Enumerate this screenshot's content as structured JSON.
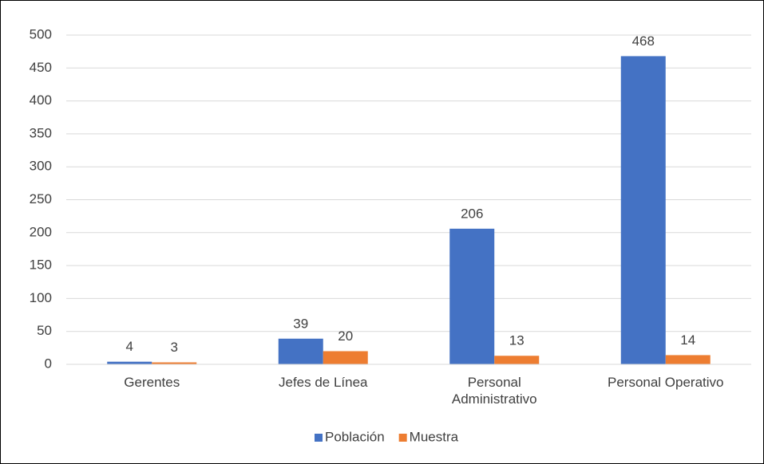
{
  "chart_data": {
    "type": "bar",
    "categories": [
      "Gerentes",
      "Jefes de Línea",
      "Personal Administrativo",
      "Personal Operativo"
    ],
    "series": [
      {
        "name": "Población",
        "color": "#4472c4",
        "values": [
          4,
          39,
          206,
          468
        ]
      },
      {
        "name": "Muestra",
        "color": "#ed7d31",
        "values": [
          3,
          20,
          13,
          14
        ]
      }
    ],
    "ylim": [
      0,
      500
    ],
    "yticks": [
      0,
      50,
      100,
      150,
      200,
      250,
      300,
      350,
      400,
      450,
      500
    ],
    "grid": true,
    "legend": "bottom",
    "data_labels": true
  }
}
